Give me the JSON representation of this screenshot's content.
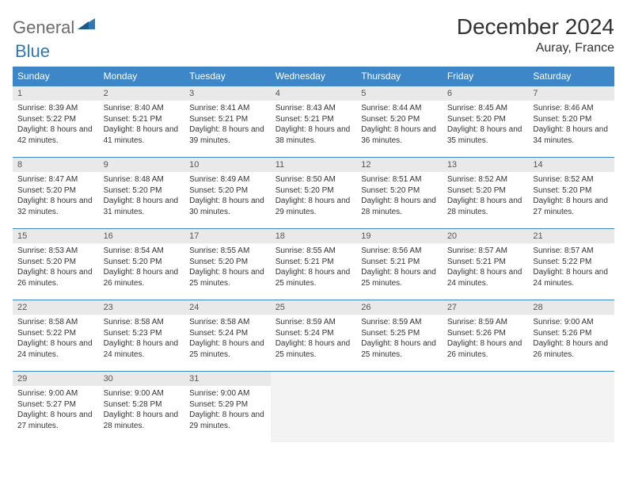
{
  "brand": {
    "part1": "General",
    "part2": "Blue"
  },
  "title": "December 2024",
  "location": "Auray, France",
  "colors": {
    "header_bg": "#3d87c9",
    "header_text": "#ffffff",
    "daynum_bg": "#e9e9e9",
    "daynum_text": "#555555",
    "daynum_border": "#3d87c9",
    "body_text": "#333333",
    "logo_gray": "#6b6b6b",
    "logo_blue": "#2e78b8",
    "empty_bg": "#f3f3f3",
    "page_bg": "#ffffff"
  },
  "typography": {
    "title_fontsize": 28,
    "location_fontsize": 16,
    "weekday_fontsize": 12,
    "daynum_fontsize": 11,
    "info_fontsize": 10
  },
  "weekdays": [
    "Sunday",
    "Monday",
    "Tuesday",
    "Wednesday",
    "Thursday",
    "Friday",
    "Saturday"
  ],
  "weeks": [
    [
      {
        "n": "1",
        "sr": "Sunrise: 8:39 AM",
        "ss": "Sunset: 5:22 PM",
        "dl": "Daylight: 8 hours and 42 minutes."
      },
      {
        "n": "2",
        "sr": "Sunrise: 8:40 AM",
        "ss": "Sunset: 5:21 PM",
        "dl": "Daylight: 8 hours and 41 minutes."
      },
      {
        "n": "3",
        "sr": "Sunrise: 8:41 AM",
        "ss": "Sunset: 5:21 PM",
        "dl": "Daylight: 8 hours and 39 minutes."
      },
      {
        "n": "4",
        "sr": "Sunrise: 8:43 AM",
        "ss": "Sunset: 5:21 PM",
        "dl": "Daylight: 8 hours and 38 minutes."
      },
      {
        "n": "5",
        "sr": "Sunrise: 8:44 AM",
        "ss": "Sunset: 5:20 PM",
        "dl": "Daylight: 8 hours and 36 minutes."
      },
      {
        "n": "6",
        "sr": "Sunrise: 8:45 AM",
        "ss": "Sunset: 5:20 PM",
        "dl": "Daylight: 8 hours and 35 minutes."
      },
      {
        "n": "7",
        "sr": "Sunrise: 8:46 AM",
        "ss": "Sunset: 5:20 PM",
        "dl": "Daylight: 8 hours and 34 minutes."
      }
    ],
    [
      {
        "n": "8",
        "sr": "Sunrise: 8:47 AM",
        "ss": "Sunset: 5:20 PM",
        "dl": "Daylight: 8 hours and 32 minutes."
      },
      {
        "n": "9",
        "sr": "Sunrise: 8:48 AM",
        "ss": "Sunset: 5:20 PM",
        "dl": "Daylight: 8 hours and 31 minutes."
      },
      {
        "n": "10",
        "sr": "Sunrise: 8:49 AM",
        "ss": "Sunset: 5:20 PM",
        "dl": "Daylight: 8 hours and 30 minutes."
      },
      {
        "n": "11",
        "sr": "Sunrise: 8:50 AM",
        "ss": "Sunset: 5:20 PM",
        "dl": "Daylight: 8 hours and 29 minutes."
      },
      {
        "n": "12",
        "sr": "Sunrise: 8:51 AM",
        "ss": "Sunset: 5:20 PM",
        "dl": "Daylight: 8 hours and 28 minutes."
      },
      {
        "n": "13",
        "sr": "Sunrise: 8:52 AM",
        "ss": "Sunset: 5:20 PM",
        "dl": "Daylight: 8 hours and 28 minutes."
      },
      {
        "n": "14",
        "sr": "Sunrise: 8:52 AM",
        "ss": "Sunset: 5:20 PM",
        "dl": "Daylight: 8 hours and 27 minutes."
      }
    ],
    [
      {
        "n": "15",
        "sr": "Sunrise: 8:53 AM",
        "ss": "Sunset: 5:20 PM",
        "dl": "Daylight: 8 hours and 26 minutes."
      },
      {
        "n": "16",
        "sr": "Sunrise: 8:54 AM",
        "ss": "Sunset: 5:20 PM",
        "dl": "Daylight: 8 hours and 26 minutes."
      },
      {
        "n": "17",
        "sr": "Sunrise: 8:55 AM",
        "ss": "Sunset: 5:20 PM",
        "dl": "Daylight: 8 hours and 25 minutes."
      },
      {
        "n": "18",
        "sr": "Sunrise: 8:55 AM",
        "ss": "Sunset: 5:21 PM",
        "dl": "Daylight: 8 hours and 25 minutes."
      },
      {
        "n": "19",
        "sr": "Sunrise: 8:56 AM",
        "ss": "Sunset: 5:21 PM",
        "dl": "Daylight: 8 hours and 25 minutes."
      },
      {
        "n": "20",
        "sr": "Sunrise: 8:57 AM",
        "ss": "Sunset: 5:21 PM",
        "dl": "Daylight: 8 hours and 24 minutes."
      },
      {
        "n": "21",
        "sr": "Sunrise: 8:57 AM",
        "ss": "Sunset: 5:22 PM",
        "dl": "Daylight: 8 hours and 24 minutes."
      }
    ],
    [
      {
        "n": "22",
        "sr": "Sunrise: 8:58 AM",
        "ss": "Sunset: 5:22 PM",
        "dl": "Daylight: 8 hours and 24 minutes."
      },
      {
        "n": "23",
        "sr": "Sunrise: 8:58 AM",
        "ss": "Sunset: 5:23 PM",
        "dl": "Daylight: 8 hours and 24 minutes."
      },
      {
        "n": "24",
        "sr": "Sunrise: 8:58 AM",
        "ss": "Sunset: 5:24 PM",
        "dl": "Daylight: 8 hours and 25 minutes."
      },
      {
        "n": "25",
        "sr": "Sunrise: 8:59 AM",
        "ss": "Sunset: 5:24 PM",
        "dl": "Daylight: 8 hours and 25 minutes."
      },
      {
        "n": "26",
        "sr": "Sunrise: 8:59 AM",
        "ss": "Sunset: 5:25 PM",
        "dl": "Daylight: 8 hours and 25 minutes."
      },
      {
        "n": "27",
        "sr": "Sunrise: 8:59 AM",
        "ss": "Sunset: 5:26 PM",
        "dl": "Daylight: 8 hours and 26 minutes."
      },
      {
        "n": "28",
        "sr": "Sunrise: 9:00 AM",
        "ss": "Sunset: 5:26 PM",
        "dl": "Daylight: 8 hours and 26 minutes."
      }
    ],
    [
      {
        "n": "29",
        "sr": "Sunrise: 9:00 AM",
        "ss": "Sunset: 5:27 PM",
        "dl": "Daylight: 8 hours and 27 minutes."
      },
      {
        "n": "30",
        "sr": "Sunrise: 9:00 AM",
        "ss": "Sunset: 5:28 PM",
        "dl": "Daylight: 8 hours and 28 minutes."
      },
      {
        "n": "31",
        "sr": "Sunrise: 9:00 AM",
        "ss": "Sunset: 5:29 PM",
        "dl": "Daylight: 8 hours and 29 minutes."
      },
      null,
      null,
      null,
      null
    ]
  ]
}
